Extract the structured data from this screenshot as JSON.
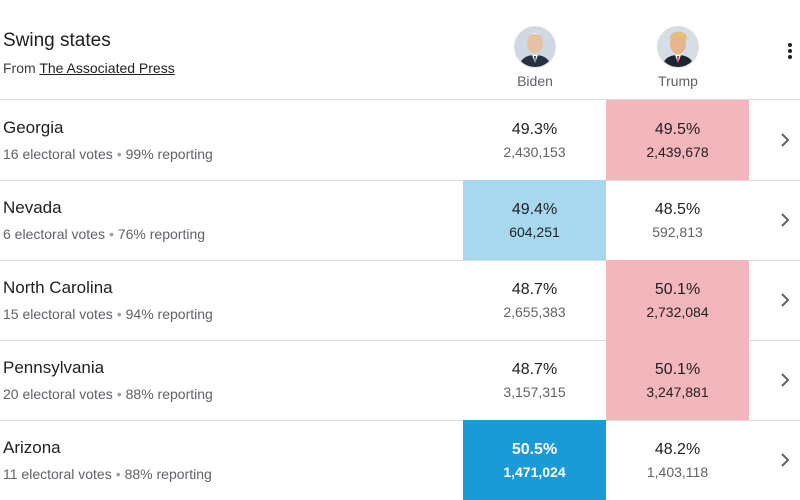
{
  "header": {
    "title": "Swing states",
    "source_prefix": "From",
    "source_name": "The Associated Press",
    "candidates": [
      {
        "name": "Biden",
        "avatar_icon": "biden-photo"
      },
      {
        "name": "Trump",
        "avatar_icon": "trump-photo"
      }
    ],
    "menu_icon": "more-vert-icon"
  },
  "colors": {
    "trump_lead": "#f4b6bd",
    "biden_lead": "#a7d8ee",
    "biden_win": "#1b9ad8"
  },
  "states": [
    {
      "name": "Georgia",
      "electoral": "16 electoral votes",
      "reporting": "99% reporting",
      "biden_pct": "49.3%",
      "biden_votes": "2,430,153",
      "trump_pct": "49.5%",
      "trump_votes": "2,439,678"
    },
    {
      "name": "Nevada",
      "electoral": "6 electoral votes",
      "reporting": "76% reporting",
      "biden_pct": "49.4%",
      "biden_votes": "604,251",
      "trump_pct": "48.5%",
      "trump_votes": "592,813"
    },
    {
      "name": "North Carolina",
      "electoral": "15 electoral votes",
      "reporting": "94% reporting",
      "biden_pct": "48.7%",
      "biden_votes": "2,655,383",
      "trump_pct": "50.1%",
      "trump_votes": "2,732,084"
    },
    {
      "name": "Pennsylvania",
      "electoral": "20 electoral votes",
      "reporting": "88% reporting",
      "biden_pct": "48.7%",
      "biden_votes": "3,157,315",
      "trump_pct": "50.1%",
      "trump_votes": "3,247,881"
    },
    {
      "name": "Arizona",
      "electoral": "11 electoral votes",
      "reporting": "88% reporting",
      "biden_pct": "50.5%",
      "biden_votes": "1,471,024",
      "trump_pct": "48.2%",
      "trump_votes": "1,403,118"
    }
  ]
}
